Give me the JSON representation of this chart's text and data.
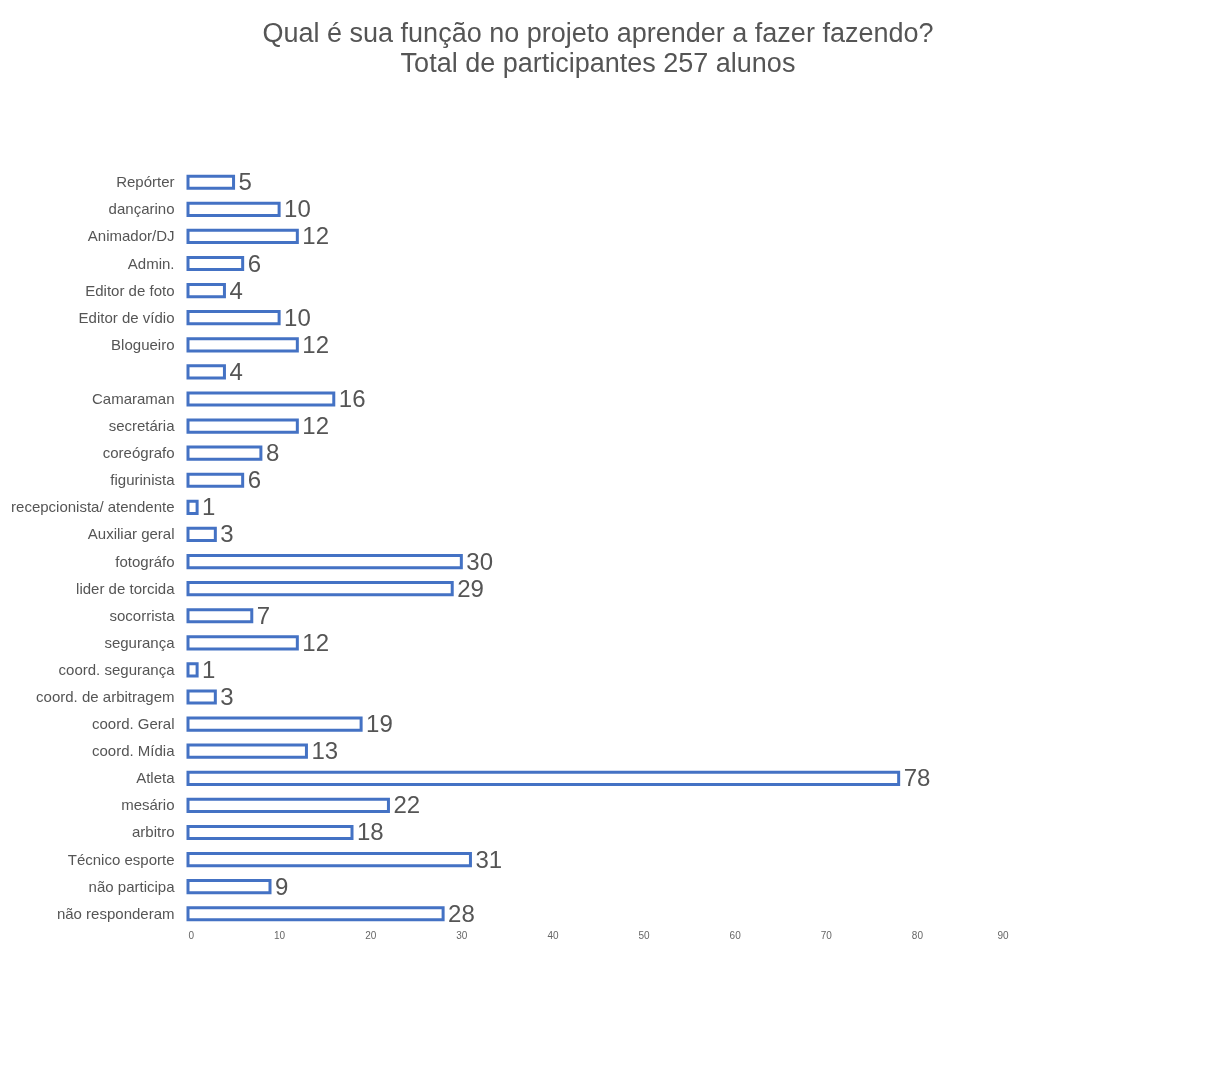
{
  "chart_data": {
    "type": "bar",
    "orientation": "horizontal",
    "title": "Qual é sua função no projeto aprender a fazer fazendo?",
    "subtitle": "Total de participantes  257 alunos",
    "categories": [
      "Repórter",
      "dançarino",
      "Animador/DJ",
      "Admin.",
      "Editor de foto",
      "Editor de vídio",
      "Blogueiro",
      null,
      "Camaraman",
      "secretária",
      "coreógrafo",
      "figurinista",
      "recepcionista/ atendente",
      "Auxiliar geral",
      "fotográfo",
      "lider de torcida",
      "socorrista",
      "segurança",
      "coord. segurança",
      "coord. de arbitragem",
      "coord. Geral",
      "coord. Mídia",
      "Atleta",
      "mesário",
      "arbitro",
      "Técnico esporte",
      "não participa",
      "não responderam"
    ],
    "values": [
      5,
      10,
      12,
      6,
      4,
      10,
      12,
      4,
      16,
      12,
      8,
      6,
      1,
      3,
      30,
      29,
      7,
      12,
      1,
      3,
      19,
      13,
      78,
      22,
      18,
      31,
      9,
      28
    ],
    "color": "#4472c4",
    "xlim": [
      0,
      90
    ],
    "xticks": [
      0,
      10,
      20,
      30,
      40,
      50,
      60,
      70,
      80,
      90
    ],
    "grid": false,
    "data_labels": true
  }
}
